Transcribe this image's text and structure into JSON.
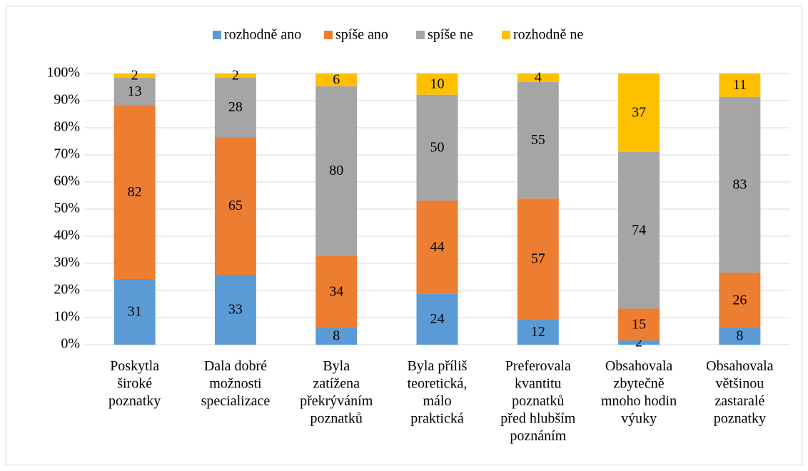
{
  "chart_data": {
    "type": "stacked_bar_percent",
    "categories": [
      "Poskytla\nširoké\npoznatky",
      "Dala dobré\nmožnosti\nspecializace",
      "Byla\nzatížena\npřekrýváním\npoznatků",
      "Byla příliš\nteoretická,\nmálo\npraktická",
      "Preferovala\nkvantitu\npoznatků\npřed hlubším\npoznáním",
      "Obsahovala\nzbytečně\nmnoho hodin\nvýuky",
      "Obsahovala\nvětšinou\nzastaralé\npoznatky"
    ],
    "series": [
      {
        "name": "rozhodně ano",
        "color": "#5b9bd5",
        "values": [
          31,
          33,
          8,
          24,
          12,
          2,
          8
        ]
      },
      {
        "name": "spíše ano",
        "color": "#ed7d31",
        "values": [
          82,
          65,
          34,
          44,
          57,
          15,
          26
        ]
      },
      {
        "name": "spíše ne",
        "color": "#a5a5a5",
        "values": [
          13,
          28,
          80,
          50,
          55,
          74,
          83
        ]
      },
      {
        "name": "rozhodně ne",
        "color": "#ffc000",
        "values": [
          2,
          2,
          6,
          10,
          4,
          37,
          11
        ]
      }
    ],
    "ylim": [
      0,
      100
    ],
    "yticks": [
      {
        "value": 0,
        "label": "0%"
      },
      {
        "value": 10,
        "label": "10%"
      },
      {
        "value": 20,
        "label": "20%"
      },
      {
        "value": 30,
        "label": "30%"
      },
      {
        "value": 40,
        "label": "40%"
      },
      {
        "value": 50,
        "label": "50%"
      },
      {
        "value": 60,
        "label": "60%"
      },
      {
        "value": 70,
        "label": "70%"
      },
      {
        "value": 80,
        "label": "80%"
      },
      {
        "value": 90,
        "label": "90%"
      },
      {
        "value": 100,
        "label": "100%"
      }
    ],
    "grid": true,
    "legend": "top"
  }
}
